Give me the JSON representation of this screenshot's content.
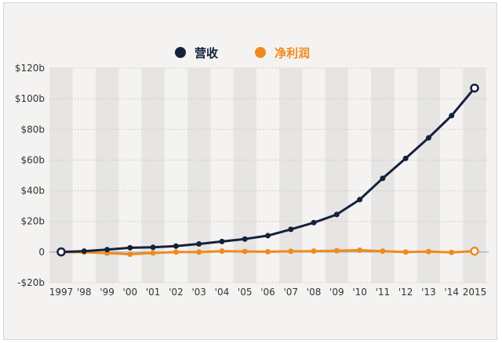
{
  "chart_data": {
    "type": "line",
    "title": "",
    "xlabel": "",
    "ylabel": "",
    "categories": [
      "1997",
      "'98",
      "'99",
      "'00",
      "'01",
      "'02",
      "'03",
      "'04",
      "'05",
      "'06",
      "'07",
      "'08",
      "'09",
      "'10",
      "'11",
      "'12",
      "'13",
      "'14",
      "2015"
    ],
    "y_tick_labels": [
      "$120b",
      "$100b",
      "$80b",
      "$60b",
      "$40b",
      "$20b",
      "0",
      "-$20b"
    ],
    "y_ticks": [
      120,
      100,
      80,
      60,
      40,
      20,
      0,
      -20
    ],
    "ylim": [
      -20,
      120
    ],
    "grid": true,
    "legend_position": "top-center",
    "series": [
      {
        "name": "营收",
        "color": "#14213d",
        "values": [
          0.1,
          0.6,
          1.6,
          2.8,
          3.1,
          3.9,
          5.3,
          6.9,
          8.5,
          10.7,
          14.8,
          19.2,
          24.5,
          34.2,
          48.1,
          61.1,
          74.5,
          89.0,
          107.0
        ]
      },
      {
        "name": "净利润",
        "color": "#f08a1e",
        "values": [
          0.0,
          -0.1,
          -0.7,
          -1.4,
          -0.6,
          0.0,
          0.0,
          0.6,
          0.4,
          0.2,
          0.5,
          0.6,
          0.9,
          1.2,
          0.6,
          0.0,
          0.3,
          -0.2,
          0.6
        ]
      }
    ]
  }
}
